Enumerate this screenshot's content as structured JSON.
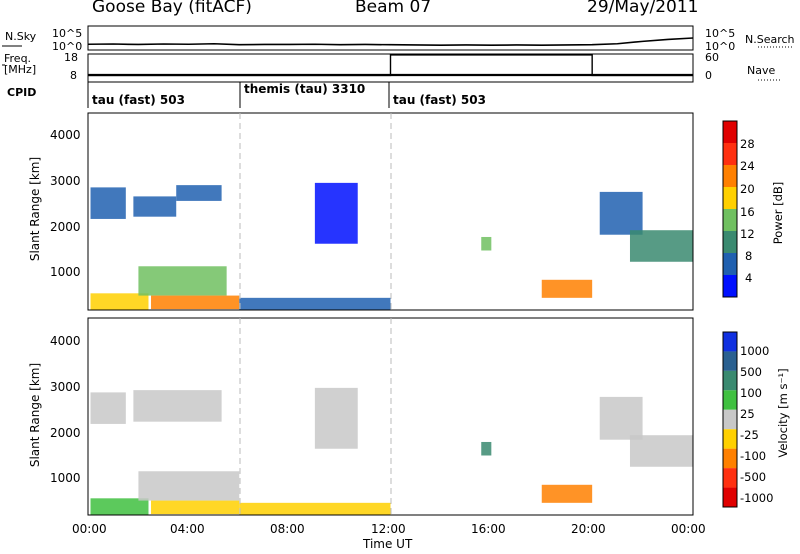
{
  "header": {
    "station": "Goose Bay (fitACF)",
    "beam": "Beam 07",
    "date": "29/May/2011"
  },
  "param_rows": {
    "nsky_label": "N.Sky",
    "nsky_ticks": [
      "10^5",
      "10^0"
    ],
    "nsearch_label": "N.Search",
    "nsearch_ticks": [
      "10^5",
      "10^0"
    ],
    "freq_label_line1": "Freq.",
    "freq_label_line2": "[MHz]",
    "freq_ticks": [
      "18",
      "8"
    ],
    "nave_label": "Nave",
    "nave_ticks": [
      "60",
      "0"
    ],
    "cpid_label": "CPID"
  },
  "cpid_segments": [
    {
      "label": "tau (fast) 503",
      "start_hour": 0,
      "end_hour": 6
    },
    {
      "label": "themis (tau) 3310",
      "start_hour": 6,
      "end_hour": 12
    },
    {
      "label": "tau (fast) 503",
      "start_hour": 12,
      "end_hour": 24
    }
  ],
  "power_panel": {
    "ylabel": "Slant Range [km]",
    "yticks": [
      "4000",
      "3000",
      "2000",
      "1000"
    ],
    "colorbar_label": "Power [dB]",
    "colorbar_ticks": [
      "28",
      "24",
      "20",
      "16",
      "12",
      "8",
      "4"
    ],
    "colorbar_colors": [
      "#e00000",
      "#ff3010",
      "#ff8000",
      "#ffd000",
      "#70c060",
      "#3a8a70",
      "#2060b0",
      "#0010ff"
    ]
  },
  "velocity_panel": {
    "ylabel": "Slant Range [km]",
    "yticks": [
      "4000",
      "3000",
      "2000",
      "1000"
    ],
    "colorbar_label": "Velocity [m s⁻¹]",
    "colorbar_ticks": [
      "1000",
      "500",
      "100",
      "25",
      "-25",
      "-100",
      "-500",
      "-1000"
    ],
    "colorbar_colors": [
      "#1030e0",
      "#2a6090",
      "#3a8a70",
      "#40c040",
      "#c8c8c8",
      "#ffd000",
      "#ff8000",
      "#ff3010",
      "#e00000"
    ]
  },
  "xaxis": {
    "label": "Time UT",
    "ticks": [
      "00:00",
      "04:00",
      "08:00",
      "12:00",
      "16:00",
      "20:00",
      "00:00"
    ]
  },
  "chart_data": [
    {
      "type": "line",
      "name": "nsky-nsearch",
      "x_hours": [
        0,
        1,
        2,
        3,
        4,
        5,
        6,
        7,
        8,
        9,
        10,
        11,
        12,
        13,
        14,
        15,
        16,
        17,
        18,
        19,
        20,
        21,
        22,
        23,
        24
      ],
      "series": [
        {
          "name": "N.Sky",
          "values": [
            1.2,
            1.25,
            1.15,
            1.25,
            1.2,
            1.3,
            1.1,
            1.15,
            1.15,
            1.2,
            1.1,
            1.15,
            1.1,
            1.05,
            1.0,
            1.05,
            1.0,
            1.05,
            1.0,
            1.05,
            1.1,
            1.3,
            1.8,
            2.2,
            2.5
          ]
        }
      ],
      "ylim": [
        0,
        5
      ]
    },
    {
      "type": "line",
      "name": "freq-nave",
      "series": [
        {
          "name": "Freq.",
          "x_hours": [
            0,
            24
          ],
          "values": [
            10.5,
            10.5
          ]
        },
        {
          "name": "Nave",
          "x_hours": [
            0,
            12,
            12,
            20,
            20,
            24
          ],
          "values": [
            14,
            14,
            58,
            58,
            14,
            14
          ]
        }
      ]
    },
    {
      "type": "heatmap",
      "name": "power-range-time",
      "xlim_hours": [
        0,
        24
      ],
      "ylim_km": [
        180,
        4550
      ],
      "cells": [
        {
          "t": [
            0.1,
            2.4
          ],
          "r": [
            150,
            550
          ],
          "value": 20
        },
        {
          "t": [
            0.1,
            1.5
          ],
          "r": [
            2200,
            2900
          ],
          "value": 8
        },
        {
          "t": [
            1.8,
            3.5
          ],
          "r": [
            2250,
            2700
          ],
          "value": 8
        },
        {
          "t": [
            3.5,
            5.3
          ],
          "r": [
            2600,
            2950
          ],
          "value": 8
        },
        {
          "t": [
            2.0,
            5.5
          ],
          "r": [
            500,
            1150
          ],
          "value": 16
        },
        {
          "t": [
            2.5,
            6.0
          ],
          "r": [
            200,
            500
          ],
          "value": 24
        },
        {
          "t": [
            6.0,
            12.0
          ],
          "r": [
            180,
            450
          ],
          "value": 6
        },
        {
          "t": [
            9.0,
            10.7
          ],
          "r": [
            1650,
            3000
          ],
          "value": 4
        },
        {
          "t": [
            15.6,
            16.0
          ],
          "r": [
            1500,
            1800
          ],
          "value": 16
        },
        {
          "t": [
            18.0,
            20.0
          ],
          "r": [
            450,
            850
          ],
          "value": 22
        },
        {
          "t": [
            20.3,
            22.0
          ],
          "r": [
            1850,
            2800
          ],
          "value": 8
        },
        {
          "t": [
            21.5,
            24.0
          ],
          "r": [
            1250,
            1950
          ],
          "value": 10
        }
      ]
    },
    {
      "type": "heatmap",
      "name": "velocity-range-time",
      "xlim_hours": [
        0,
        24
      ],
      "ylim_km": [
        180,
        4550
      ],
      "cells": [
        {
          "t": [
            0.1,
            2.4
          ],
          "r": [
            150,
            550
          ],
          "value": 50
        },
        {
          "t": [
            0.1,
            1.5
          ],
          "r": [
            2200,
            2900
          ],
          "value": 0
        },
        {
          "t": [
            1.8,
            5.3
          ],
          "r": [
            2250,
            2950
          ],
          "value": 0
        },
        {
          "t": [
            2.0,
            6.0
          ],
          "r": [
            500,
            1150
          ],
          "value": 0
        },
        {
          "t": [
            2.5,
            6.0
          ],
          "r": [
            200,
            500
          ],
          "value": -100
        },
        {
          "t": [
            6.0,
            12.0
          ],
          "r": [
            180,
            450
          ],
          "value": -50
        },
        {
          "t": [
            9.0,
            10.7
          ],
          "r": [
            1650,
            3000
          ],
          "value": 0
        },
        {
          "t": [
            15.6,
            16.0
          ],
          "r": [
            1500,
            1800
          ],
          "value": 300
        },
        {
          "t": [
            18.0,
            20.0
          ],
          "r": [
            450,
            850
          ],
          "value": -300
        },
        {
          "t": [
            20.3,
            22.0
          ],
          "r": [
            1850,
            2800
          ],
          "value": 0
        },
        {
          "t": [
            21.5,
            24.0
          ],
          "r": [
            1250,
            1950
          ],
          "value": 0
        }
      ]
    }
  ]
}
